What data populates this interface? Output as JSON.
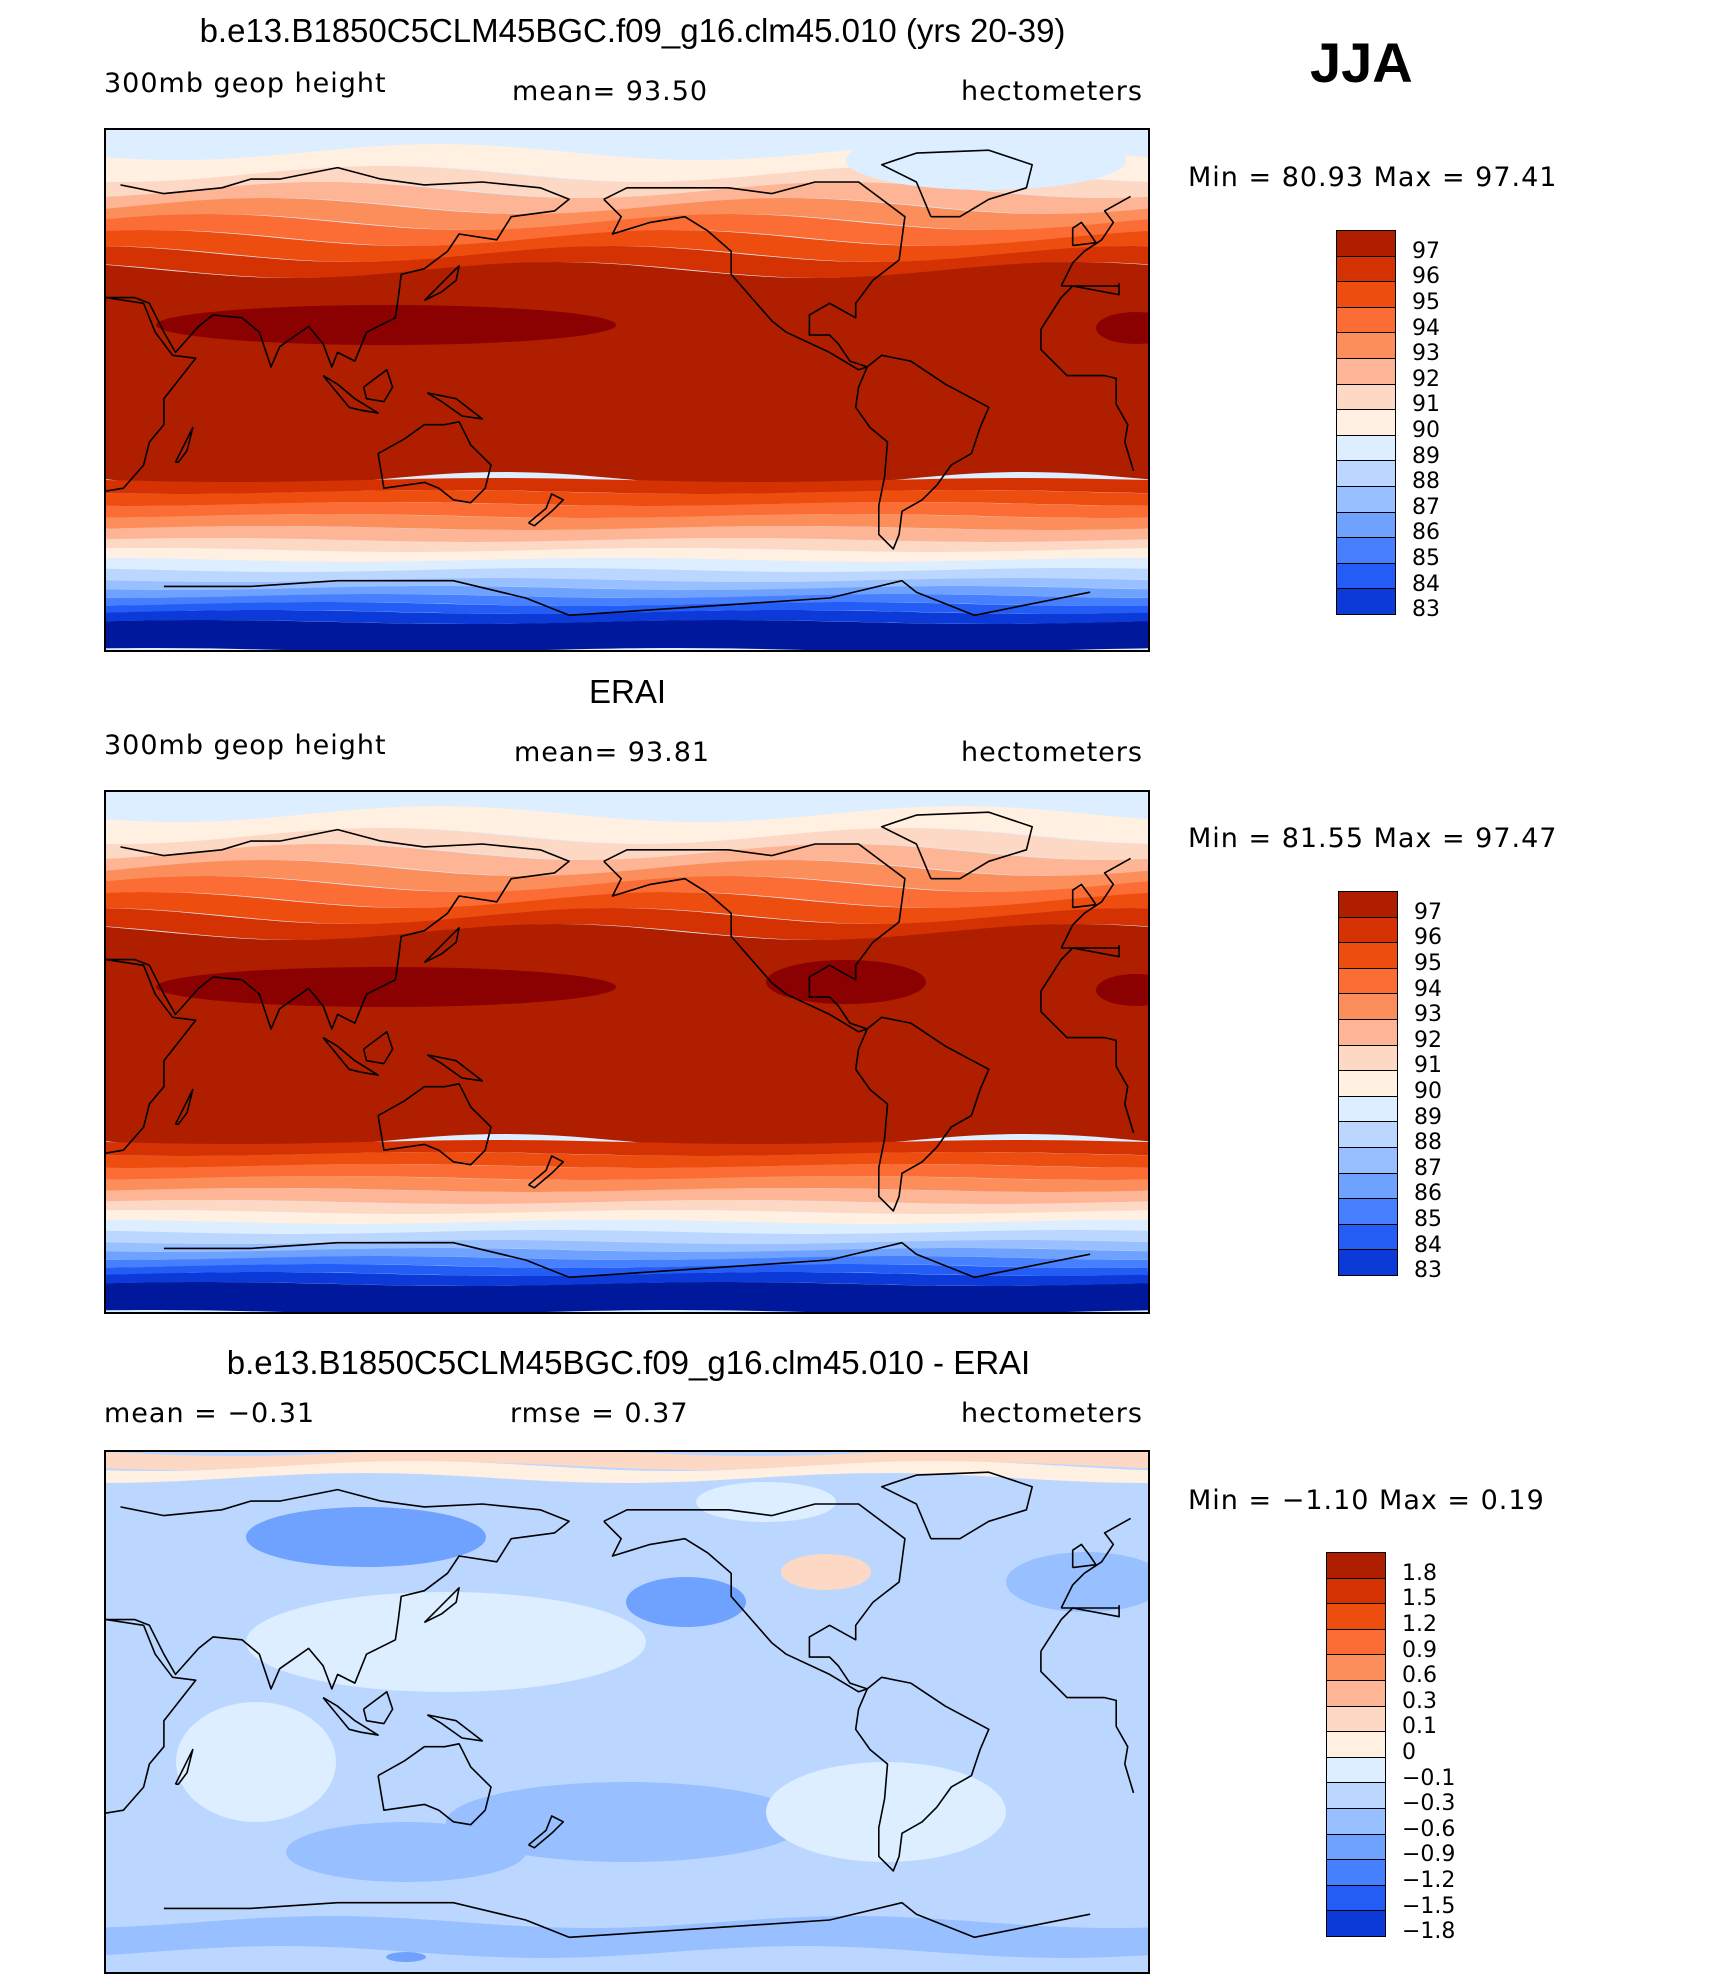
{
  "season": "JJA",
  "panels": [
    {
      "title": "b.e13.B1850C5CLM45BGC.f09_g16.clm45.010 (yrs 20-39)",
      "left_label": "300mb geop height",
      "center_label": "mean=  93.50",
      "right_label": "hectometers",
      "minmax": "Min =  80.93 Max =  97.41",
      "colorbar": {
        "labels": [
          "97",
          "96",
          "95",
          "94",
          "93",
          "92",
          "91",
          "90",
          "89",
          "88",
          "87",
          "86",
          "85",
          "84",
          "83"
        ],
        "colors": [
          "#8b0000",
          "#b01e00",
          "#d53204",
          "#ee4d10",
          "#fb6d34",
          "#fc8e5c",
          "#fdb595",
          "#fdd8c4",
          "#fff0e2",
          "#dceeff",
          "#bcd7ff",
          "#98bfff",
          "#6fa1ff",
          "#4680ff",
          "#245df6",
          "#0c3ad9",
          "#00189b"
        ]
      },
      "map": {
        "colors": "model"
      }
    },
    {
      "title": "ERAI",
      "left_label": "300mb geop height",
      "center_label": "mean=  93.81",
      "right_label": "hectometers",
      "minmax": "Min =  81.55 Max =  97.47",
      "colorbar": {
        "labels": [
          "97",
          "96",
          "95",
          "94",
          "93",
          "92",
          "91",
          "90",
          "89",
          "88",
          "87",
          "86",
          "85",
          "84",
          "83"
        ],
        "colors": [
          "#8b0000",
          "#b01e00",
          "#d53204",
          "#ee4d10",
          "#fb6d34",
          "#fc8e5c",
          "#fdb595",
          "#fdd8c4",
          "#fff0e2",
          "#dceeff",
          "#bcd7ff",
          "#98bfff",
          "#6fa1ff",
          "#4680ff",
          "#245df6",
          "#0c3ad9",
          "#00189b"
        ]
      },
      "map": {
        "colors": "obs"
      }
    },
    {
      "title": "b.e13.B1850C5CLM45BGC.f09_g16.clm45.010 - ERAI",
      "left_label": "mean =  −0.31",
      "center_label": "rmse =   0.37",
      "right_label": "hectometers",
      "minmax": "Min =  −1.10 Max =   0.19",
      "colorbar": {
        "labels": [
          "1.8",
          "1.5",
          "1.2",
          "0.9",
          "0.6",
          "0.3",
          "0.1",
          "0",
          "−0.1",
          "−0.3",
          "−0.6",
          "−0.9",
          "−1.2",
          "−1.5",
          "−1.8"
        ],
        "colors": [
          "#8b0000",
          "#b01e00",
          "#d53204",
          "#ee4d10",
          "#fb6d34",
          "#fc8e5c",
          "#fdb595",
          "#fdd8c4",
          "#fff0e2",
          "#dceeff",
          "#bcd7ff",
          "#98bfff",
          "#6fa1ff",
          "#4680ff",
          "#245df6",
          "#0c3ad9",
          "#00189b"
        ]
      },
      "map": {
        "colors": "diff"
      }
    }
  ]
}
